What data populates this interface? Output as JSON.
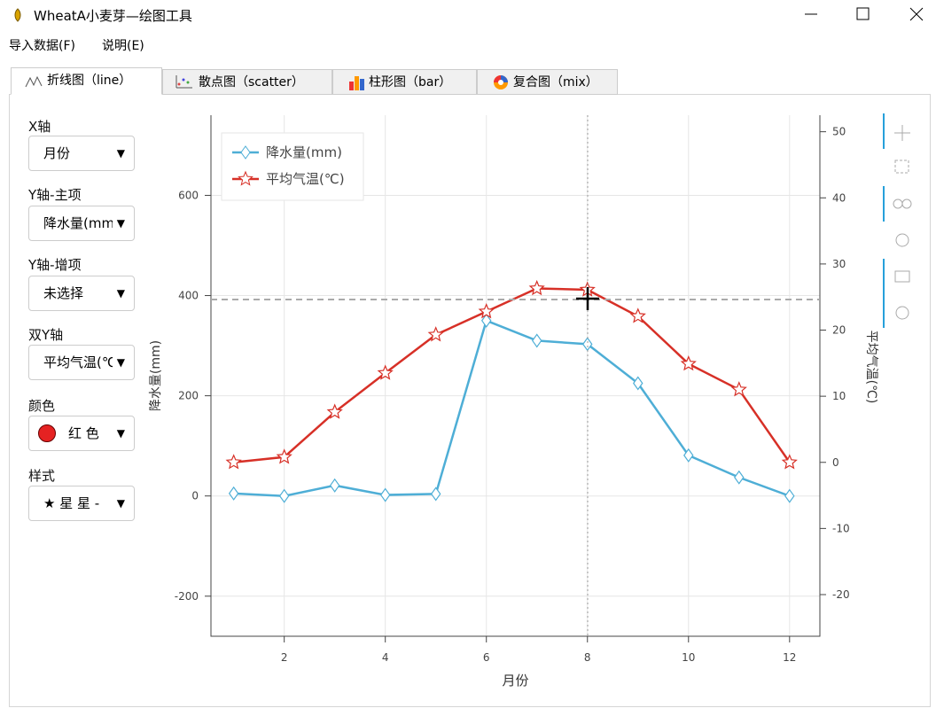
{
  "window": {
    "title": "WheatA小麦芽—绘图工具"
  },
  "menu": [
    "导入数据(F)",
    "说明(E)"
  ],
  "tabs": [
    "折线图（line）",
    "散点图（scatter）",
    "柱形图（bar）",
    "复合图（mix）"
  ],
  "sidebar": [
    {
      "label": "X轴",
      "value": "月份"
    },
    {
      "label": "Y轴-主项",
      "value": "降水量(mm)"
    },
    {
      "label": "Y轴-增项",
      "value": "未选择"
    },
    {
      "label": "双Y轴",
      "value": "平均气温(℃)"
    },
    {
      "label": "颜色",
      "value": "红 色"
    },
    {
      "label": "样式",
      "value": "★ 星 星 -"
    }
  ],
  "chart_data": {
    "type": "line",
    "x_label": "月份",
    "y_label": "降水量(mm)",
    "y2_label": "平均气温(℃)",
    "x": [
      1,
      2,
      3,
      4,
      5,
      6,
      7,
      8,
      9,
      10,
      11,
      12
    ],
    "series": [
      {
        "name": "降水量(mm)",
        "color": "#4eaed6",
        "marker": "diamond",
        "values": [
          5,
          0,
          21,
          2,
          4,
          350,
          310,
          303,
          225,
          81,
          37,
          0
        ]
      },
      {
        "name": "平均气温(℃)",
        "color": "#d73027",
        "marker": "star",
        "axis": "y2",
        "values": [
          0,
          0.8,
          7.6,
          13.5,
          19.3,
          22.8,
          26.3,
          26.1,
          22.1,
          14.9,
          11.0,
          0
        ]
      }
    ],
    "xlim": [
      0.55,
      12.6
    ],
    "xticks": [
      2,
      4,
      6,
      8,
      10,
      12
    ],
    "ylim": [
      -280,
      760
    ],
    "yticks": [
      -200,
      0,
      200,
      400,
      600
    ],
    "y2lim": [
      -26.3,
      52.5
    ],
    "y2ticks": [
      -20,
      -10,
      0,
      10,
      20,
      30,
      40,
      50
    ],
    "grid": true,
    "legend": "upper left"
  }
}
